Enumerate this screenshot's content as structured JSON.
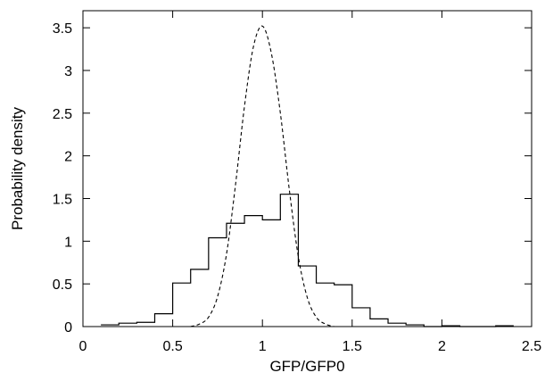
{
  "chart_data": {
    "type": "line",
    "title": "",
    "xlabel": "GFP/GFP0",
    "ylabel": "Probability density",
    "xlim": [
      0,
      2.5
    ],
    "ylim": [
      0,
      3.7
    ],
    "xticks": [
      0,
      0.5,
      1,
      1.5,
      2,
      2.5
    ],
    "xtick_labels": [
      "0",
      "0.5",
      "1",
      "1.5",
      "2",
      "2.5"
    ],
    "yticks": [
      0,
      0.5,
      1,
      1.5,
      2,
      2.5,
      3,
      3.5
    ],
    "ytick_labels": [
      "0",
      "0.5",
      "1",
      "1.5",
      "2",
      "2.5",
      "3",
      "3.5"
    ],
    "grid": false,
    "legend": "none",
    "series": [
      {
        "style": "solid-step-histogram",
        "color": "#000000",
        "bin_edges": [
          0.1,
          0.2,
          0.3,
          0.4,
          0.5,
          0.6,
          0.7,
          0.8,
          0.9,
          1.0,
          1.1,
          1.2,
          1.3,
          1.4,
          1.5,
          1.6,
          1.7,
          1.8,
          1.9,
          2.0,
          2.1,
          2.2,
          2.3,
          2.4
        ],
        "values": [
          0.02,
          0.04,
          0.05,
          0.15,
          0.51,
          0.67,
          1.04,
          1.21,
          1.3,
          1.25,
          1.55,
          0.71,
          0.51,
          0.49,
          0.22,
          0.09,
          0.04,
          0.02,
          0.0,
          0.01,
          0.0,
          0.0,
          0.01
        ]
      },
      {
        "style": "dashed-curve",
        "color": "#000000",
        "x": [
          0.6,
          0.65,
          0.7,
          0.75,
          0.8,
          0.85,
          0.9,
          0.95,
          1.0,
          1.05,
          1.1,
          1.15,
          1.2,
          1.25,
          1.3,
          1.35,
          1.4
        ],
        "y": [
          0.0,
          0.03,
          0.11,
          0.35,
          0.85,
          1.66,
          2.58,
          3.28,
          3.52,
          3.2,
          2.5,
          1.6,
          0.82,
          0.34,
          0.11,
          0.03,
          0.0
        ]
      }
    ]
  }
}
